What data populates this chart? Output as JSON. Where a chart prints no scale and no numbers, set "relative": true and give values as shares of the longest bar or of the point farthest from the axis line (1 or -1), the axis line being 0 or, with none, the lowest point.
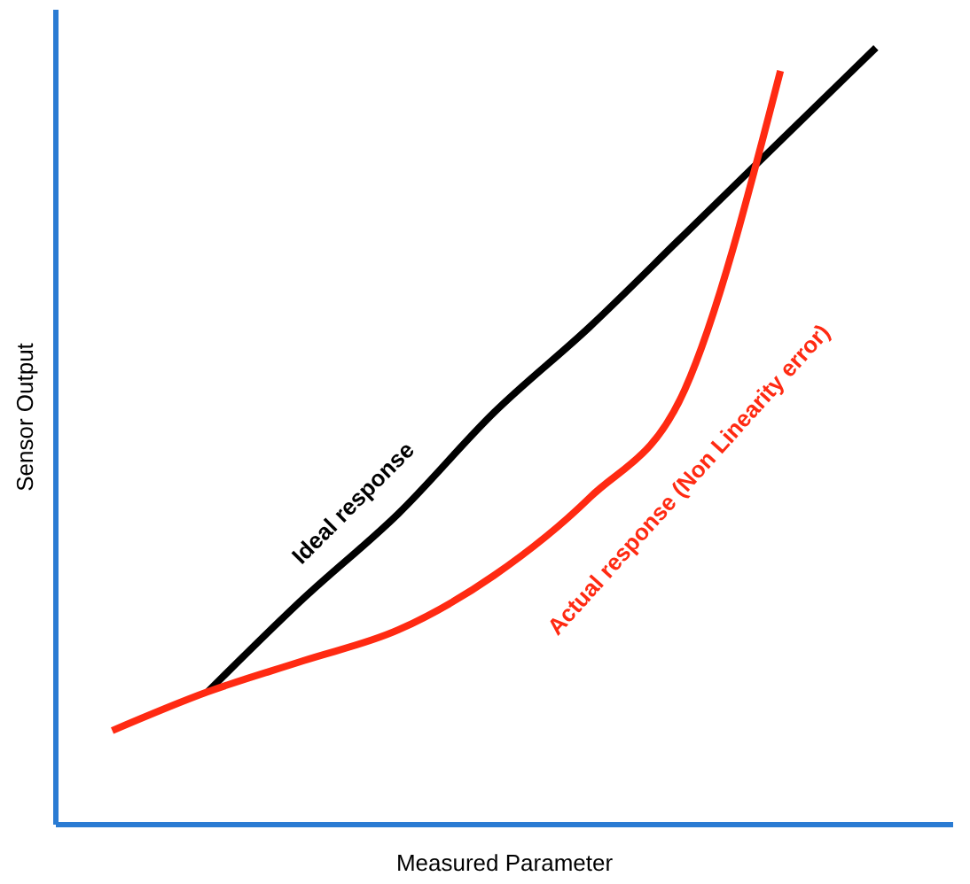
{
  "chart_data": {
    "type": "line",
    "relative": true,
    "xlabel": "Measured Parameter",
    "ylabel": "Sensor Output",
    "grid": false,
    "marker": "none",
    "line_style": "solid",
    "categories": [
      null,
      null,
      null,
      null,
      null,
      null,
      null,
      null,
      null
    ],
    "series": [
      {
        "name": "Ideal response",
        "color": "#000000",
        "values": [
          null,
          0.17,
          0.29,
          0.4,
          0.53,
          0.64,
          0.76,
          0.88,
          1
        ]
      },
      {
        "name": "Actual response (Non Linearity error)",
        "color": "#ff2a12",
        "values": [
          0.12,
          0.17,
          0.21,
          0.25,
          0.32,
          0.42,
          0.56,
          0.97,
          null
        ]
      }
    ]
  }
}
